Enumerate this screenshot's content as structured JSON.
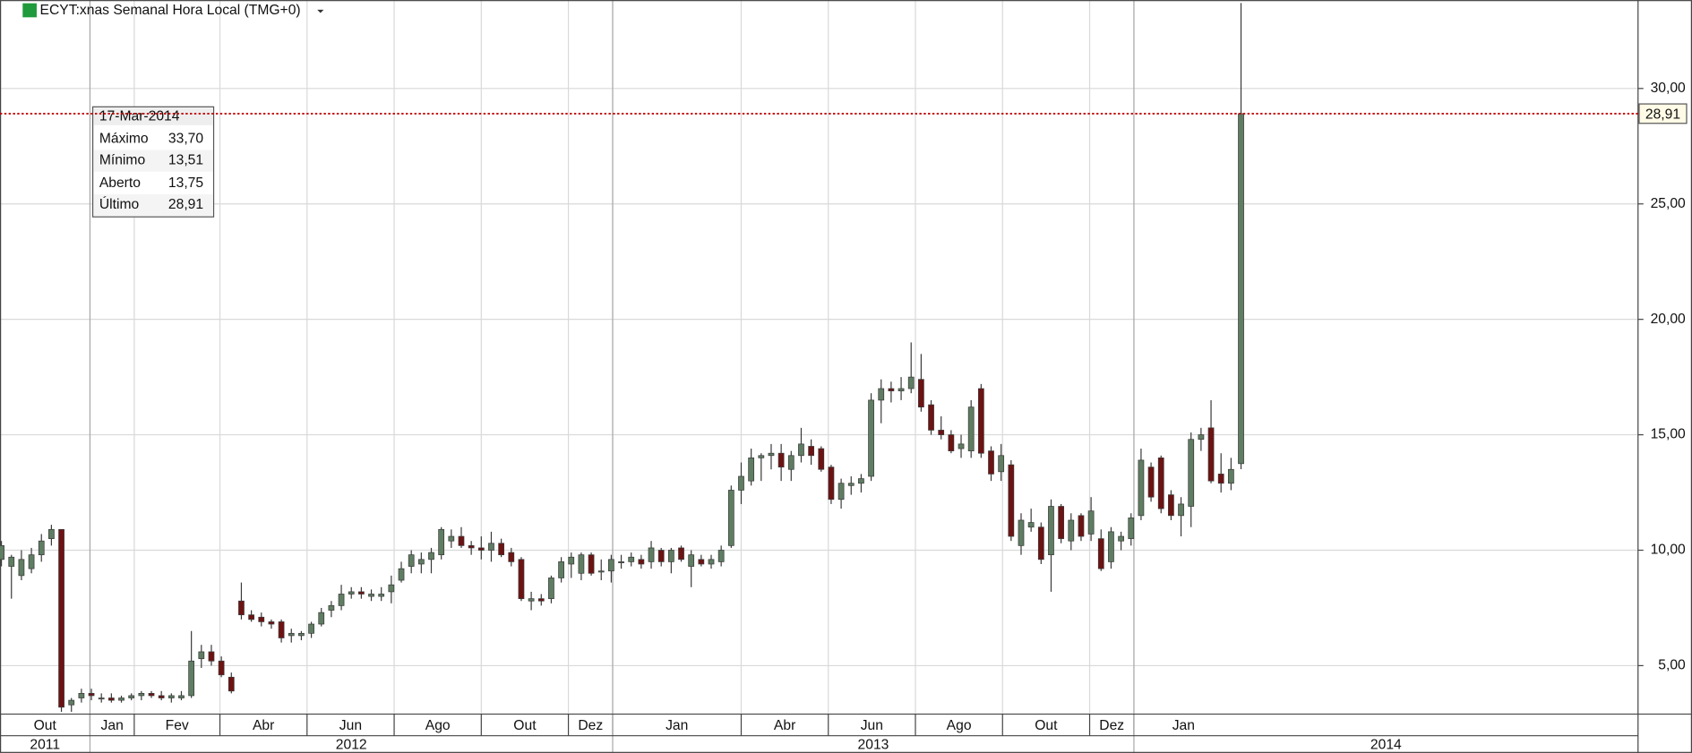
{
  "header": {
    "title": "ECYT:xnas Semanal Hora Local (TMG+0)"
  },
  "tooltip": {
    "date": "17-Mar-2014",
    "rows": [
      {
        "label": "Máximo",
        "value": "33,70"
      },
      {
        "label": "Mínimo",
        "value": "13,51"
      },
      {
        "label": "Aberto",
        "value": "13,75"
      },
      {
        "label": "Último",
        "value": "28,91"
      }
    ]
  },
  "chart_data": {
    "type": "candlestick",
    "up_color": "#5f7d62",
    "down_color": "#6e1212",
    "wick_color": "#3a3a3a",
    "x": [
      "2011-10-31",
      "2011-11-07",
      "2011-11-14",
      "2011-11-21",
      "2011-11-28",
      "2011-12-05",
      "2011-12-12",
      "2011-12-19",
      "2011-12-26",
      "2012-01-02",
      "2012-01-09",
      "2012-01-16",
      "2012-01-23",
      "2012-01-30",
      "2012-02-06",
      "2012-02-13",
      "2012-02-20",
      "2012-02-27",
      "2012-03-05",
      "2012-03-12",
      "2012-03-19",
      "2012-03-26",
      "2012-04-02",
      "2012-04-09",
      "2012-04-16",
      "2012-04-23",
      "2012-04-30",
      "2012-05-07",
      "2012-05-14",
      "2012-05-21",
      "2012-05-28",
      "2012-06-04",
      "2012-06-11",
      "2012-06-18",
      "2012-06-25",
      "2012-07-02",
      "2012-07-09",
      "2012-07-16",
      "2012-07-23",
      "2012-07-30",
      "2012-08-06",
      "2012-08-13",
      "2012-08-20",
      "2012-08-27",
      "2012-09-03",
      "2012-09-10",
      "2012-09-17",
      "2012-09-24",
      "2012-10-01",
      "2012-10-08",
      "2012-10-15",
      "2012-10-22",
      "2012-10-29",
      "2012-11-05",
      "2012-11-12",
      "2012-11-19",
      "2012-11-26",
      "2012-12-03",
      "2012-12-10",
      "2012-12-17",
      "2012-12-24",
      "2012-12-31",
      "2013-01-07",
      "2013-01-14",
      "2013-01-21",
      "2013-01-28",
      "2013-02-04",
      "2013-02-11",
      "2013-02-18",
      "2013-02-25",
      "2013-03-04",
      "2013-03-11",
      "2013-03-18",
      "2013-03-25",
      "2013-04-01",
      "2013-04-08",
      "2013-04-15",
      "2013-04-22",
      "2013-04-29",
      "2013-05-06",
      "2013-05-13",
      "2013-05-20",
      "2013-05-27",
      "2013-06-03",
      "2013-06-10",
      "2013-06-17",
      "2013-06-24",
      "2013-07-01",
      "2013-07-08",
      "2013-07-15",
      "2013-07-22",
      "2013-07-29",
      "2013-08-05",
      "2013-08-12",
      "2013-08-19",
      "2013-08-26",
      "2013-09-02",
      "2013-09-09",
      "2013-09-16",
      "2013-09-23",
      "2013-09-30",
      "2013-10-07",
      "2013-10-14",
      "2013-10-21",
      "2013-10-28",
      "2013-11-04",
      "2013-11-11",
      "2013-11-18",
      "2013-11-25",
      "2013-12-02",
      "2013-12-09",
      "2013-12-16",
      "2013-12-23",
      "2013-12-30",
      "2014-01-06",
      "2014-01-13",
      "2014-01-20",
      "2014-01-27",
      "2014-02-03",
      "2014-02-10",
      "2014-02-17",
      "2014-02-24",
      "2014-03-03",
      "2014-03-10",
      "2014-03-17"
    ],
    "open": [
      9.6,
      9.3,
      8.9,
      9.2,
      9.8,
      10.5,
      10.9,
      3.3,
      3.6,
      3.8,
      3.6,
      3.6,
      3.5,
      3.6,
      3.7,
      3.8,
      3.7,
      3.6,
      3.6,
      3.7,
      5.3,
      5.6,
      5.2,
      4.5,
      7.8,
      7.2,
      7.1,
      6.9,
      6.9,
      6.3,
      6.3,
      6.4,
      6.8,
      7.4,
      7.6,
      8.1,
      8.2,
      8.0,
      8.0,
      8.2,
      8.7,
      9.3,
      9.4,
      9.6,
      9.8,
      10.4,
      10.6,
      10.2,
      10.1,
      10.0,
      10.3,
      9.9,
      9.6,
      7.8,
      7.9,
      7.9,
      8.8,
      9.4,
      9.0,
      9.8,
      9.1,
      9.1,
      9.5,
      9.5,
      9.6,
      9.5,
      10.0,
      9.5,
      10.1,
      9.3,
      9.6,
      9.4,
      9.5,
      10.2,
      12.6,
      13.0,
      14.0,
      14.1,
      14.2,
      13.5,
      14.1,
      14.5,
      14.4,
      13.6,
      12.2,
      12.8,
      12.9,
      13.2,
      16.5,
      17.0,
      16.9,
      17.0,
      17.4,
      16.3,
      15.2,
      15.0,
      14.4,
      14.3,
      17.0,
      14.3,
      13.4,
      13.7,
      10.2,
      11.0,
      11.0,
      9.8,
      11.9,
      10.4,
      11.5,
      10.7,
      10.5,
      9.5,
      10.4,
      10.5,
      11.5,
      13.6,
      14.0,
      12.4,
      11.5,
      11.9,
      14.8,
      15.3,
      13.3,
      12.9,
      13.75
    ],
    "high": [
      10.4,
      9.8,
      10.0,
      10.1,
      10.7,
      11.1,
      10.9,
      3.6,
      4.0,
      4.0,
      3.8,
      3.8,
      3.7,
      3.8,
      3.9,
      3.9,
      3.9,
      3.8,
      3.9,
      6.5,
      5.9,
      5.9,
      5.4,
      4.7,
      8.6,
      7.4,
      7.3,
      7.0,
      7.0,
      6.6,
      6.5,
      6.9,
      7.5,
      7.8,
      8.5,
      8.4,
      8.4,
      8.3,
      8.4,
      8.9,
      9.5,
      10.0,
      9.9,
      10.1,
      11.0,
      10.9,
      11.0,
      10.4,
      10.6,
      10.8,
      10.5,
      10.1,
      9.7,
      8.2,
      8.1,
      8.9,
      9.7,
      9.9,
      9.9,
      9.9,
      9.6,
      9.8,
      9.8,
      9.9,
      9.8,
      10.4,
      10.1,
      10.1,
      10.2,
      10.0,
      9.8,
      9.8,
      10.2,
      12.8,
      13.8,
      14.4,
      14.2,
      14.6,
      14.6,
      14.3,
      15.3,
      14.8,
      14.5,
      13.7,
      13.1,
      13.2,
      13.3,
      16.8,
      17.4,
      17.3,
      17.5,
      19.0,
      18.5,
      16.5,
      15.8,
      15.2,
      15.0,
      16.5,
      17.2,
      14.5,
      14.6,
      13.9,
      11.6,
      11.8,
      11.2,
      12.2,
      12.0,
      11.6,
      11.6,
      12.3,
      10.9,
      11.0,
      10.8,
      11.6,
      14.4,
      13.8,
      14.1,
      12.6,
      12.3,
      15.1,
      15.3,
      16.5,
      14.2,
      14.0,
      33.7
    ],
    "low": [
      9.3,
      7.9,
      8.7,
      9.0,
      9.5,
      10.2,
      3.0,
      3.0,
      3.4,
      3.5,
      3.4,
      3.4,
      3.4,
      3.5,
      3.5,
      3.6,
      3.5,
      3.4,
      3.5,
      3.6,
      4.9,
      5.0,
      4.5,
      3.8,
      7.0,
      6.9,
      6.7,
      6.6,
      6.0,
      6.0,
      6.1,
      6.2,
      6.7,
      7.1,
      7.4,
      7.9,
      7.9,
      7.8,
      7.8,
      7.7,
      8.6,
      9.0,
      9.0,
      9.0,
      9.6,
      10.1,
      10.1,
      9.8,
      9.6,
      9.5,
      9.7,
      9.3,
      7.8,
      7.4,
      7.6,
      7.7,
      8.6,
      8.8,
      8.7,
      8.9,
      8.7,
      8.6,
      9.2,
      9.3,
      9.2,
      9.2,
      9.3,
      9.0,
      9.5,
      8.4,
      9.3,
      9.2,
      9.3,
      10.1,
      12.0,
      12.8,
      13.0,
      13.5,
      13.0,
      13.0,
      13.8,
      13.7,
      13.4,
      12.0,
      11.8,
      12.4,
      12.5,
      13.0,
      15.5,
      16.4,
      16.5,
      16.8,
      16.0,
      15.0,
      14.8,
      14.2,
      14.0,
      14.0,
      14.0,
      13.0,
      13.0,
      10.4,
      9.8,
      10.8,
      9.4,
      8.2,
      10.3,
      10.0,
      10.4,
      10.4,
      9.1,
      9.2,
      10.0,
      10.2,
      11.3,
      12.1,
      11.6,
      11.3,
      10.6,
      11.0,
      14.3,
      12.9,
      12.5,
      12.6,
      13.51
    ],
    "close": [
      10.2,
      9.7,
      9.6,
      9.8,
      10.4,
      10.9,
      3.2,
      3.5,
      3.8,
      3.7,
      3.6,
      3.5,
      3.6,
      3.7,
      3.8,
      3.7,
      3.6,
      3.7,
      3.7,
      5.2,
      5.6,
      5.2,
      4.6,
      3.9,
      7.2,
      7.0,
      6.9,
      6.8,
      6.2,
      6.4,
      6.4,
      6.8,
      7.3,
      7.6,
      8.1,
      8.2,
      8.1,
      8.1,
      8.1,
      8.5,
      9.2,
      9.8,
      9.6,
      9.9,
      10.9,
      10.6,
      10.2,
      10.1,
      10.0,
      10.3,
      9.8,
      9.5,
      7.9,
      7.9,
      7.8,
      8.8,
      9.5,
      9.7,
      9.8,
      9.0,
      9.1,
      9.6,
      9.5,
      9.7,
      9.4,
      10.1,
      9.5,
      10.0,
      9.6,
      9.8,
      9.4,
      9.6,
      10.0,
      12.6,
      13.2,
      14.0,
      14.1,
      14.2,
      13.6,
      14.1,
      14.6,
      14.1,
      13.5,
      12.2,
      12.9,
      12.9,
      13.1,
      16.5,
      17.0,
      16.9,
      17.0,
      17.5,
      16.2,
      15.2,
      15.0,
      14.3,
      14.6,
      16.2,
      14.2,
      13.3,
      14.1,
      10.6,
      11.3,
      11.2,
      9.6,
      11.9,
      10.5,
      11.3,
      10.6,
      11.7,
      9.2,
      10.8,
      10.6,
      11.4,
      13.9,
      12.3,
      11.8,
      11.5,
      12.0,
      14.8,
      15.0,
      13.0,
      12.9,
      13.5,
      28.91
    ],
    "xlim": [
      "2011-10-30",
      "2014-12-20"
    ],
    "ylim": [
      2.9,
      33.83
    ],
    "yticks": [
      {
        "value": 5,
        "label": "5,00"
      },
      {
        "value": 10,
        "label": "10,00"
      },
      {
        "value": 15,
        "label": "15,00"
      },
      {
        "value": 20,
        "label": "20,00"
      },
      {
        "value": 25,
        "label": "25,00"
      },
      {
        "value": 30,
        "label": "30,00"
      }
    ],
    "month_ticks": [
      {
        "value": "2011-10-01",
        "label": "Out"
      },
      {
        "value": "2012-01-01",
        "label": "Jan"
      },
      {
        "value": "2012-02-01",
        "label": "Fev"
      },
      {
        "value": "2012-04-01",
        "label": "Abr"
      },
      {
        "value": "2012-06-01",
        "label": "Jun"
      },
      {
        "value": "2012-08-01",
        "label": "Ago"
      },
      {
        "value": "2012-10-01",
        "label": "Out"
      },
      {
        "value": "2012-12-01",
        "label": "Dez"
      },
      {
        "value": "2013-01-01",
        "label": "Jan"
      },
      {
        "value": "2013-04-01",
        "label": "Abr"
      },
      {
        "value": "2013-06-01",
        "label": "Jun"
      },
      {
        "value": "2013-08-01",
        "label": "Ago"
      },
      {
        "value": "2013-10-01",
        "label": "Out"
      },
      {
        "value": "2013-12-01",
        "label": "Dez"
      },
      {
        "value": "2014-01-01",
        "label": "Jan"
      }
    ],
    "year_ticks": [
      {
        "value": "2011-01-01",
        "label": "2011"
      },
      {
        "value": "2012-01-01",
        "label": "2012"
      },
      {
        "value": "2013-01-01",
        "label": "2013"
      },
      {
        "value": "2014-01-01",
        "label": "2014"
      }
    ],
    "last_price": {
      "value": 28.91,
      "label": "28,91"
    },
    "last_price_color": "#c00000",
    "grid": true
  }
}
